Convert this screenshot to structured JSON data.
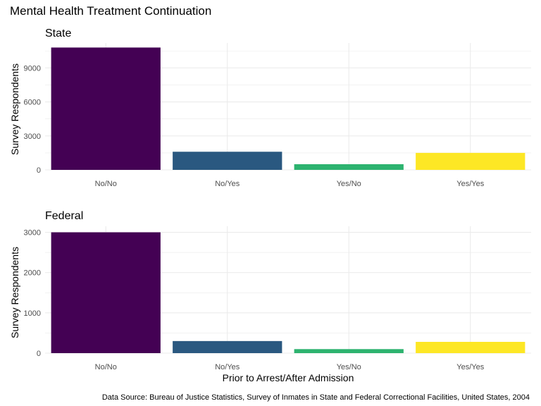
{
  "title": "Mental Health Treatment Continuation",
  "caption": "Data Source: Bureau of Justice Statistics, Survey of Inmates in State and Federal Correctional Facilities, United States, 2004",
  "xlabel": "Prior to Arrest/After Admission",
  "colors": {
    "No/No": "#440154",
    "No/Yes": "#2a5880",
    "Yes/No": "#2db36f",
    "Yes/Yes": "#fde725",
    "gridline": "#ebebeb"
  },
  "chart_data": [
    {
      "type": "bar",
      "title": "State",
      "ylabel": "Survey Respondents",
      "categories": [
        "No/No",
        "No/Yes",
        "Yes/No",
        "Yes/Yes"
      ],
      "values": [
        10800,
        1600,
        500,
        1500
      ],
      "ylim": [
        0,
        11200
      ],
      "yticks": [
        0,
        3000,
        6000,
        9000
      ],
      "grid": true
    },
    {
      "type": "bar",
      "title": "Federal",
      "ylabel": "Survey Respondents",
      "categories": [
        "No/No",
        "No/Yes",
        "Yes/No",
        "Yes/Yes"
      ],
      "values": [
        3000,
        300,
        100,
        280
      ],
      "ylim": [
        0,
        3150
      ],
      "yticks": [
        0,
        1000,
        2000,
        3000
      ],
      "grid": true
    }
  ]
}
